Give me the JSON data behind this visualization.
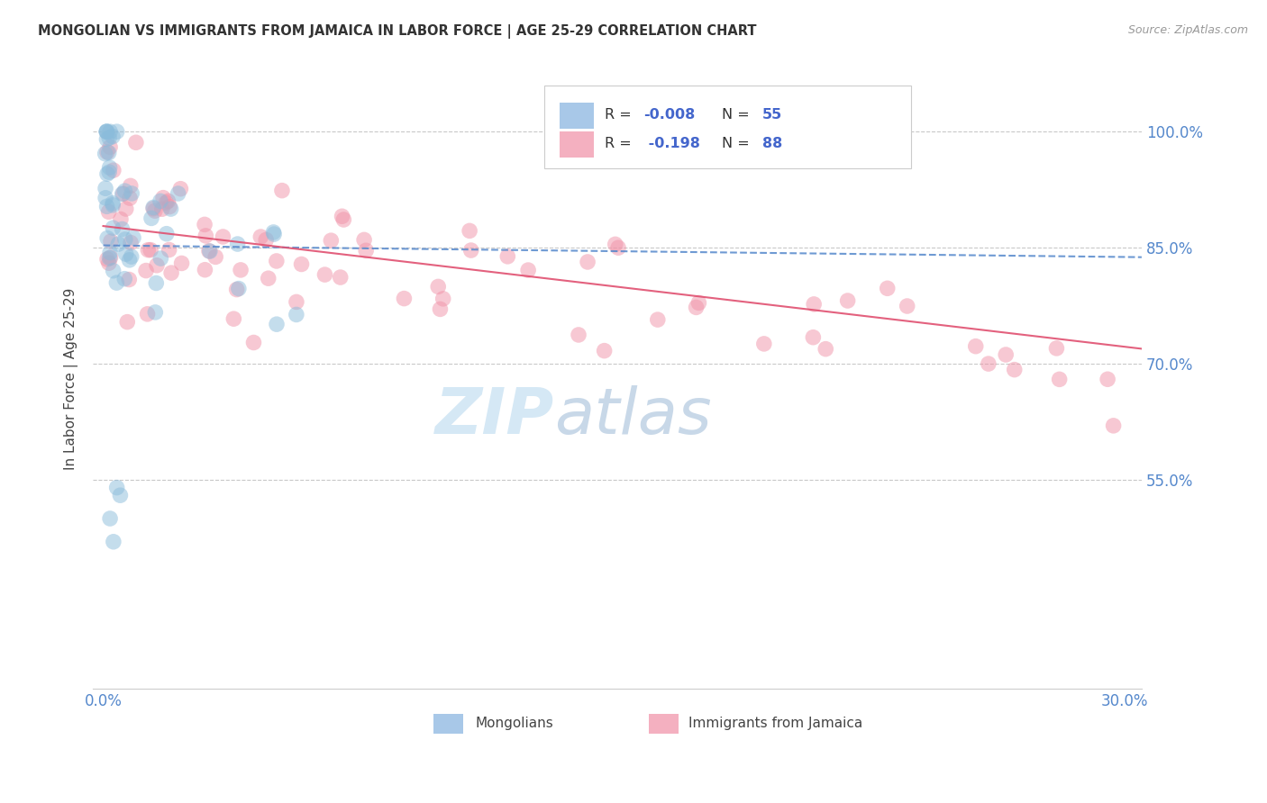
{
  "title": "MONGOLIAN VS IMMIGRANTS FROM JAMAICA IN LABOR FORCE | AGE 25-29 CORRELATION CHART",
  "source": "Source: ZipAtlas.com",
  "ylabel": "In Labor Force | Age 25-29",
  "xlim": [
    -0.003,
    0.305
  ],
  "ylim": [
    0.28,
    1.08
  ],
  "ytick_vals": [
    0.55,
    0.7,
    0.85,
    1.0
  ],
  "ytick_labels": [
    "55.0%",
    "70.0%",
    "85.0%",
    "100.0%"
  ],
  "xtick_vals": [
    0.0,
    0.05,
    0.1,
    0.15,
    0.2,
    0.25,
    0.3
  ],
  "xtick_labels": [
    "0.0%",
    "",
    "",
    "",
    "",
    "",
    "30.0%"
  ],
  "mongolian_color": "#8bbcdb",
  "jamaica_color": "#f093a8",
  "mongolian_line_color": "#5588cc",
  "jamaica_line_color": "#e05070",
  "grid_color": "#bbbbbb",
  "tick_color": "#5588cc",
  "background_color": "#ffffff",
  "legend_text_color": "#4466cc",
  "watermark_color": "#d5e8f5",
  "mon_line_intercept": 0.853,
  "mon_line_slope": -0.05,
  "jam_line_intercept": 0.878,
  "jam_line_slope": -0.52
}
